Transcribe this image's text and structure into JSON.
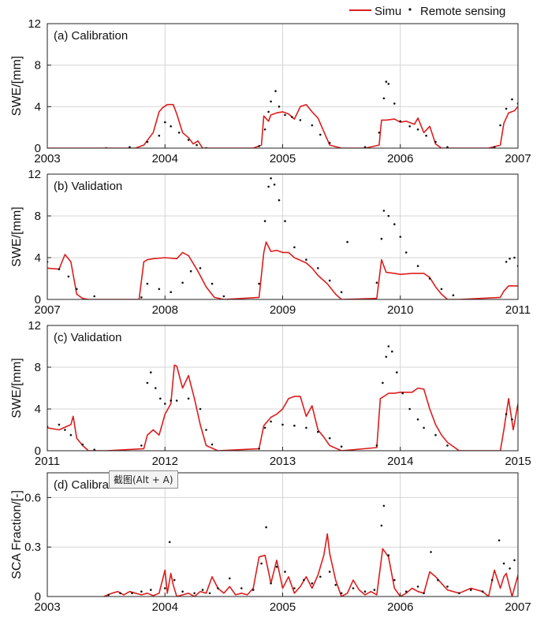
{
  "legend": {
    "simu_label": "Simu",
    "rs_label": "Remote sensing"
  },
  "colors": {
    "simu": "#dd1d1d",
    "rs": "#111111",
    "grid": "#d4d4d4",
    "frame": "#222222"
  },
  "tooltip": "截图(Alt + A)",
  "chart_data": [
    {
      "type": "line",
      "title": "(a) Calibration",
      "ylabel": "SWE/[mm]",
      "xlim": [
        2003,
        2007
      ],
      "ylim": [
        0,
        12
      ],
      "xticks": [
        2003,
        2004,
        2005,
        2006,
        2007
      ],
      "yticks": [
        0,
        4,
        8,
        12
      ],
      "grid": true,
      "series": [
        {
          "name": "Simu",
          "style": "line",
          "x": [
            2003.0,
            2003.48,
            2003.6,
            2003.75,
            2003.82,
            2003.9,
            2003.95,
            2003.98,
            2004.02,
            2004.07,
            2004.1,
            2004.15,
            2004.2,
            2004.24,
            2004.28,
            2004.32,
            2004.4,
            2004.55,
            2004.75,
            2004.82,
            2004.84,
            2004.88,
            2004.9,
            2004.95,
            2005.0,
            2005.05,
            2005.1,
            2005.15,
            2005.2,
            2005.25,
            2005.3,
            2005.35,
            2005.4,
            2005.5,
            2005.7,
            2005.82,
            2005.84,
            2005.88,
            2005.95,
            2006.0,
            2006.05,
            2006.12,
            2006.15,
            2006.2,
            2006.25,
            2006.3,
            2006.35,
            2006.45,
            2006.55,
            2006.75,
            2006.85,
            2006.88,
            2006.92,
            2006.97,
            2007.0
          ],
          "y": [
            0,
            0,
            0,
            0,
            0.3,
            1.5,
            3.5,
            3.9,
            4.2,
            4.2,
            3.3,
            1.5,
            1.0,
            0.4,
            0.7,
            0,
            0,
            0,
            0,
            0.3,
            3.1,
            2.6,
            3.2,
            3.4,
            3.5,
            3.3,
            2.8,
            4.0,
            4.2,
            3.5,
            2.9,
            1.6,
            0.3,
            0,
            0,
            0.3,
            2.7,
            2.7,
            2.8,
            2.5,
            2.6,
            2.3,
            2.9,
            1.5,
            2.1,
            0.4,
            0,
            0,
            0,
            0,
            0.3,
            2.4,
            3.4,
            3.6,
            4.0
          ]
        },
        {
          "name": "Remote sensing",
          "style": "dots",
          "x": [
            2003.5,
            2003.7,
            2003.85,
            2003.95,
            2004.0,
            2004.05,
            2004.12,
            2004.2,
            2004.27,
            2004.35,
            2004.8,
            2004.85,
            2004.88,
            2004.9,
            2004.94,
            2004.97,
            2005.02,
            2005.08,
            2005.15,
            2005.25,
            2005.32,
            2005.4,
            2005.7,
            2005.82,
            2005.86,
            2005.88,
            2005.9,
            2005.95,
            2006.0,
            2006.08,
            2006.15,
            2006.22,
            2006.3,
            2006.4,
            2006.8,
            2006.85,
            2006.9,
            2006.95,
            2007.0
          ],
          "y": [
            0,
            0.1,
            0.6,
            1.2,
            2.5,
            2.1,
            1.5,
            0.8,
            0.3,
            0,
            0.2,
            1.8,
            3.5,
            4.5,
            5.5,
            4.0,
            3.2,
            3.0,
            2.7,
            2.2,
            1.3,
            0.5,
            0.1,
            1.5,
            4.8,
            6.4,
            6.2,
            4.3,
            2.6,
            2.1,
            1.8,
            1.2,
            0.6,
            0.1,
            0.1,
            2.2,
            3.8,
            4.7,
            4.3
          ]
        }
      ]
    },
    {
      "type": "line",
      "title": "(b) Validation",
      "ylabel": "SWE/[mm]",
      "xlim": [
        2007,
        2011
      ],
      "ylim": [
        0,
        12
      ],
      "xticks": [
        2007,
        2008,
        2009,
        2010,
        2011
      ],
      "yticks": [
        0,
        4,
        8,
        12
      ],
      "grid": true,
      "series": [
        {
          "name": "Simu",
          "style": "line",
          "x": [
            2007.0,
            2007.1,
            2007.15,
            2007.2,
            2007.25,
            2007.3,
            2007.35,
            2007.5,
            2007.78,
            2007.82,
            2007.85,
            2007.9,
            2008.0,
            2008.1,
            2008.15,
            2008.2,
            2008.28,
            2008.35,
            2008.42,
            2008.5,
            2008.8,
            2008.84,
            2008.86,
            2008.9,
            2008.95,
            2009.0,
            2009.05,
            2009.1,
            2009.2,
            2009.25,
            2009.3,
            2009.38,
            2009.45,
            2009.5,
            2009.8,
            2009.84,
            2009.88,
            2009.95,
            2010.0,
            2010.1,
            2010.2,
            2010.25,
            2010.3,
            2010.35,
            2010.4,
            2010.5,
            2010.85,
            2010.88,
            2010.92,
            2011.0
          ],
          "y": [
            3.0,
            2.9,
            4.3,
            3.6,
            0.5,
            0.1,
            0,
            0,
            0,
            3.6,
            3.8,
            3.9,
            4.0,
            3.9,
            4.5,
            4.2,
            2.7,
            1.2,
            0.2,
            0,
            0.2,
            4.5,
            5.5,
            4.6,
            4.7,
            4.5,
            4.5,
            4.0,
            3.5,
            3.0,
            2.3,
            1.5,
            0.5,
            0,
            0.1,
            3.8,
            2.6,
            2.5,
            2.4,
            2.5,
            2.5,
            2.1,
            1.2,
            0.5,
            0,
            0,
            0.2,
            0.8,
            1.3,
            1.3
          ]
        },
        {
          "name": "Remote sensing",
          "style": "dots",
          "x": [
            2007.0,
            2007.1,
            2007.18,
            2007.25,
            2007.4,
            2007.8,
            2007.85,
            2007.95,
            2008.05,
            2008.15,
            2008.22,
            2008.3,
            2008.4,
            2008.5,
            2008.8,
            2008.85,
            2008.88,
            2008.9,
            2008.93,
            2008.97,
            2009.02,
            2009.1,
            2009.2,
            2009.3,
            2009.4,
            2009.5,
            2009.55,
            2009.8,
            2009.84,
            2009.86,
            2009.9,
            2009.95,
            2010.0,
            2010.05,
            2010.15,
            2010.25,
            2010.35,
            2010.45,
            2010.9,
            2010.93,
            2010.97,
            2011.0
          ],
          "y": [
            3.6,
            2.9,
            2.2,
            1.0,
            0.3,
            0.2,
            1.5,
            1.0,
            0.7,
            1.6,
            2.7,
            3.0,
            1.5,
            0.3,
            1.5,
            7.5,
            10.8,
            11.6,
            11.0,
            9.5,
            7.5,
            5.0,
            3.8,
            3.0,
            1.8,
            0.7,
            5.5,
            1.6,
            5.8,
            8.5,
            8.0,
            7.2,
            6.0,
            4.5,
            3.2,
            2.0,
            1.0,
            0.4,
            3.6,
            3.9,
            4.0,
            3.2
          ]
        }
      ]
    },
    {
      "type": "line",
      "title": "(c) Validation",
      "ylabel": "SWE/[mm]",
      "xlim": [
        2011,
        2015
      ],
      "ylim": [
        0,
        12
      ],
      "xticks": [
        2011,
        2012,
        2013,
        2014,
        2015
      ],
      "yticks": [
        0,
        4,
        8,
        12
      ],
      "grid": true,
      "series": [
        {
          "name": "Simu",
          "style": "line",
          "x": [
            2011.0,
            2011.1,
            2011.2,
            2011.22,
            2011.25,
            2011.3,
            2011.35,
            2011.5,
            2011.82,
            2011.85,
            2011.9,
            2011.95,
            2012.0,
            2012.05,
            2012.08,
            2012.1,
            2012.15,
            2012.2,
            2012.25,
            2012.3,
            2012.35,
            2012.45,
            2012.8,
            2012.84,
            2012.9,
            2012.95,
            2013.0,
            2013.05,
            2013.1,
            2013.15,
            2013.2,
            2013.25,
            2013.3,
            2013.35,
            2013.4,
            2013.5,
            2013.8,
            2013.83,
            2013.86,
            2013.9,
            2013.95,
            2014.0,
            2014.05,
            2014.1,
            2014.15,
            2014.2,
            2014.25,
            2014.3,
            2014.35,
            2014.4,
            2014.5,
            2014.85,
            2014.88,
            2014.92,
            2014.96,
            2015.0
          ],
          "y": [
            2.2,
            2.0,
            2.5,
            3.3,
            1.2,
            0.5,
            0,
            0,
            0.2,
            1.5,
            2.0,
            1.5,
            3.5,
            4.5,
            8.2,
            8.1,
            6.0,
            7.2,
            5.0,
            2.5,
            0.5,
            0,
            0.2,
            2.4,
            3.2,
            3.5,
            4.0,
            5.0,
            5.2,
            5.2,
            3.3,
            4.3,
            2.0,
            1.3,
            0.5,
            0,
            0.3,
            5.0,
            5.2,
            5.5,
            5.5,
            5.6,
            5.6,
            5.6,
            6.0,
            5.9,
            4.0,
            2.5,
            1.5,
            0.8,
            0,
            0,
            2.0,
            5.0,
            2.0,
            4.5
          ]
        },
        {
          "name": "Remote sensing",
          "style": "dots",
          "x": [
            2011.0,
            2011.1,
            2011.15,
            2011.2,
            2011.3,
            2011.4,
            2011.8,
            2011.85,
            2011.88,
            2011.92,
            2011.96,
            2012.0,
            2012.05,
            2012.1,
            2012.2,
            2012.3,
            2012.35,
            2012.4,
            2012.8,
            2012.85,
            2012.9,
            2013.0,
            2013.1,
            2013.2,
            2013.3,
            2013.4,
            2013.5,
            2013.8,
            2013.85,
            2013.88,
            2013.9,
            2013.93,
            2013.97,
            2014.02,
            2014.08,
            2014.15,
            2014.2,
            2014.3,
            2014.4,
            2014.9,
            2014.95,
            2015.0
          ],
          "y": [
            2.3,
            2.5,
            2.0,
            1.5,
            0.6,
            0.1,
            0.5,
            6.5,
            7.5,
            6.0,
            5.0,
            4.5,
            4.8,
            4.8,
            5.0,
            4.0,
            2.0,
            0.6,
            0.2,
            2.2,
            2.8,
            2.5,
            2.4,
            2.2,
            1.8,
            1.2,
            0.4,
            0.5,
            6.5,
            9.0,
            10.0,
            9.5,
            7.5,
            5.5,
            4.0,
            3.0,
            2.2,
            1.5,
            0.5,
            3.5,
            3.0,
            4.2
          ]
        }
      ]
    },
    {
      "type": "line",
      "title": "(d) Calibration",
      "ylabel": "SCA Fraction/[-]",
      "xlim": [
        2003,
        2007
      ],
      "ylim": [
        0,
        0.75
      ],
      "xticks": [
        2003,
        2004,
        2005,
        2006,
        2007
      ],
      "yticks": [
        0,
        0.3,
        0.6
      ],
      "ytick_labels": [
        "0",
        "0.3",
        "0.6"
      ],
      "grid": true,
      "series": [
        {
          "name": "Simu",
          "style": "line",
          "x": [
            2003.48,
            2003.55,
            2003.6,
            2003.65,
            2003.7,
            2003.75,
            2003.8,
            2003.85,
            2003.9,
            2003.95,
            2004.0,
            2004.02,
            2004.05,
            2004.07,
            2004.1,
            2004.15,
            2004.2,
            2004.25,
            2004.3,
            2004.35,
            2004.4,
            2004.45,
            2004.5,
            2004.55,
            2004.6,
            2004.65,
            2004.7,
            2004.75,
            2004.8,
            2004.85,
            2004.88,
            2004.9,
            2004.95,
            2005.0,
            2005.05,
            2005.1,
            2005.15,
            2005.2,
            2005.25,
            2005.3,
            2005.35,
            2005.38,
            2005.4,
            2005.45,
            2005.5,
            2005.55,
            2005.6,
            2005.65,
            2005.7,
            2005.75,
            2005.8,
            2005.85,
            2005.9,
            2005.95,
            2006.0,
            2006.05,
            2006.1,
            2006.15,
            2006.2,
            2006.25,
            2006.3,
            2006.35,
            2006.4,
            2006.5,
            2006.6,
            2006.7,
            2006.75,
            2006.8,
            2006.85,
            2006.88,
            2006.9,
            2006.95,
            2007.0
          ],
          "y": [
            0,
            0.02,
            0.03,
            0.01,
            0.03,
            0.02,
            0.01,
            0.02,
            0.005,
            0.02,
            0.16,
            0.02,
            0.14,
            0.07,
            0.0,
            0.01,
            0.02,
            0.0,
            0.03,
            0.02,
            0.12,
            0.05,
            0.02,
            0.06,
            0.01,
            0.02,
            0.01,
            0.05,
            0.24,
            0.25,
            0.15,
            0.08,
            0.22,
            0.05,
            0.12,
            0.02,
            0.06,
            0.12,
            0.05,
            0.13,
            0.25,
            0.38,
            0.26,
            0.1,
            0.0,
            0.02,
            0.1,
            0.04,
            0.01,
            0.03,
            0.01,
            0.29,
            0.24,
            0.05,
            0.0,
            0.02,
            0.05,
            0.03,
            0.02,
            0.15,
            0.12,
            0.08,
            0.04,
            0.02,
            0.05,
            0.03,
            0.0,
            0.16,
            0.05,
            0.12,
            0.14,
            0.0,
            0.13
          ]
        },
        {
          "name": "Remote sensing",
          "style": "dots",
          "x": [
            2003.52,
            2003.62,
            2003.72,
            2003.8,
            2003.88,
            2004.0,
            2004.04,
            2004.08,
            2004.15,
            2004.25,
            2004.32,
            2004.38,
            2004.45,
            2004.55,
            2004.65,
            2004.75,
            2004.82,
            2004.86,
            2004.9,
            2004.95,
            2005.02,
            2005.1,
            2005.18,
            2005.25,
            2005.32,
            2005.4,
            2005.45,
            2005.5,
            2005.6,
            2005.7,
            2005.78,
            2005.84,
            2005.86,
            2005.9,
            2005.95,
            2006.05,
            2006.15,
            2006.2,
            2006.26,
            2006.32,
            2006.4,
            2006.5,
            2006.6,
            2006.7,
            2006.78,
            2006.84,
            2006.88,
            2006.93,
            2006.97
          ],
          "y": [
            0.01,
            0.02,
            0.02,
            0.03,
            0.04,
            0.05,
            0.33,
            0.1,
            0.03,
            0.02,
            0.04,
            0.02,
            0.05,
            0.11,
            0.05,
            0.04,
            0.2,
            0.42,
            0.08,
            0.18,
            0.15,
            0.05,
            0.1,
            0.08,
            0.12,
            0.15,
            0.07,
            0.02,
            0.05,
            0.03,
            0.04,
            0.43,
            0.55,
            0.25,
            0.1,
            0.03,
            0.06,
            0.02,
            0.27,
            0.1,
            0.06,
            0.02,
            0.04,
            0.03,
            0.1,
            0.34,
            0.2,
            0.17,
            0.22
          ]
        }
      ]
    }
  ]
}
